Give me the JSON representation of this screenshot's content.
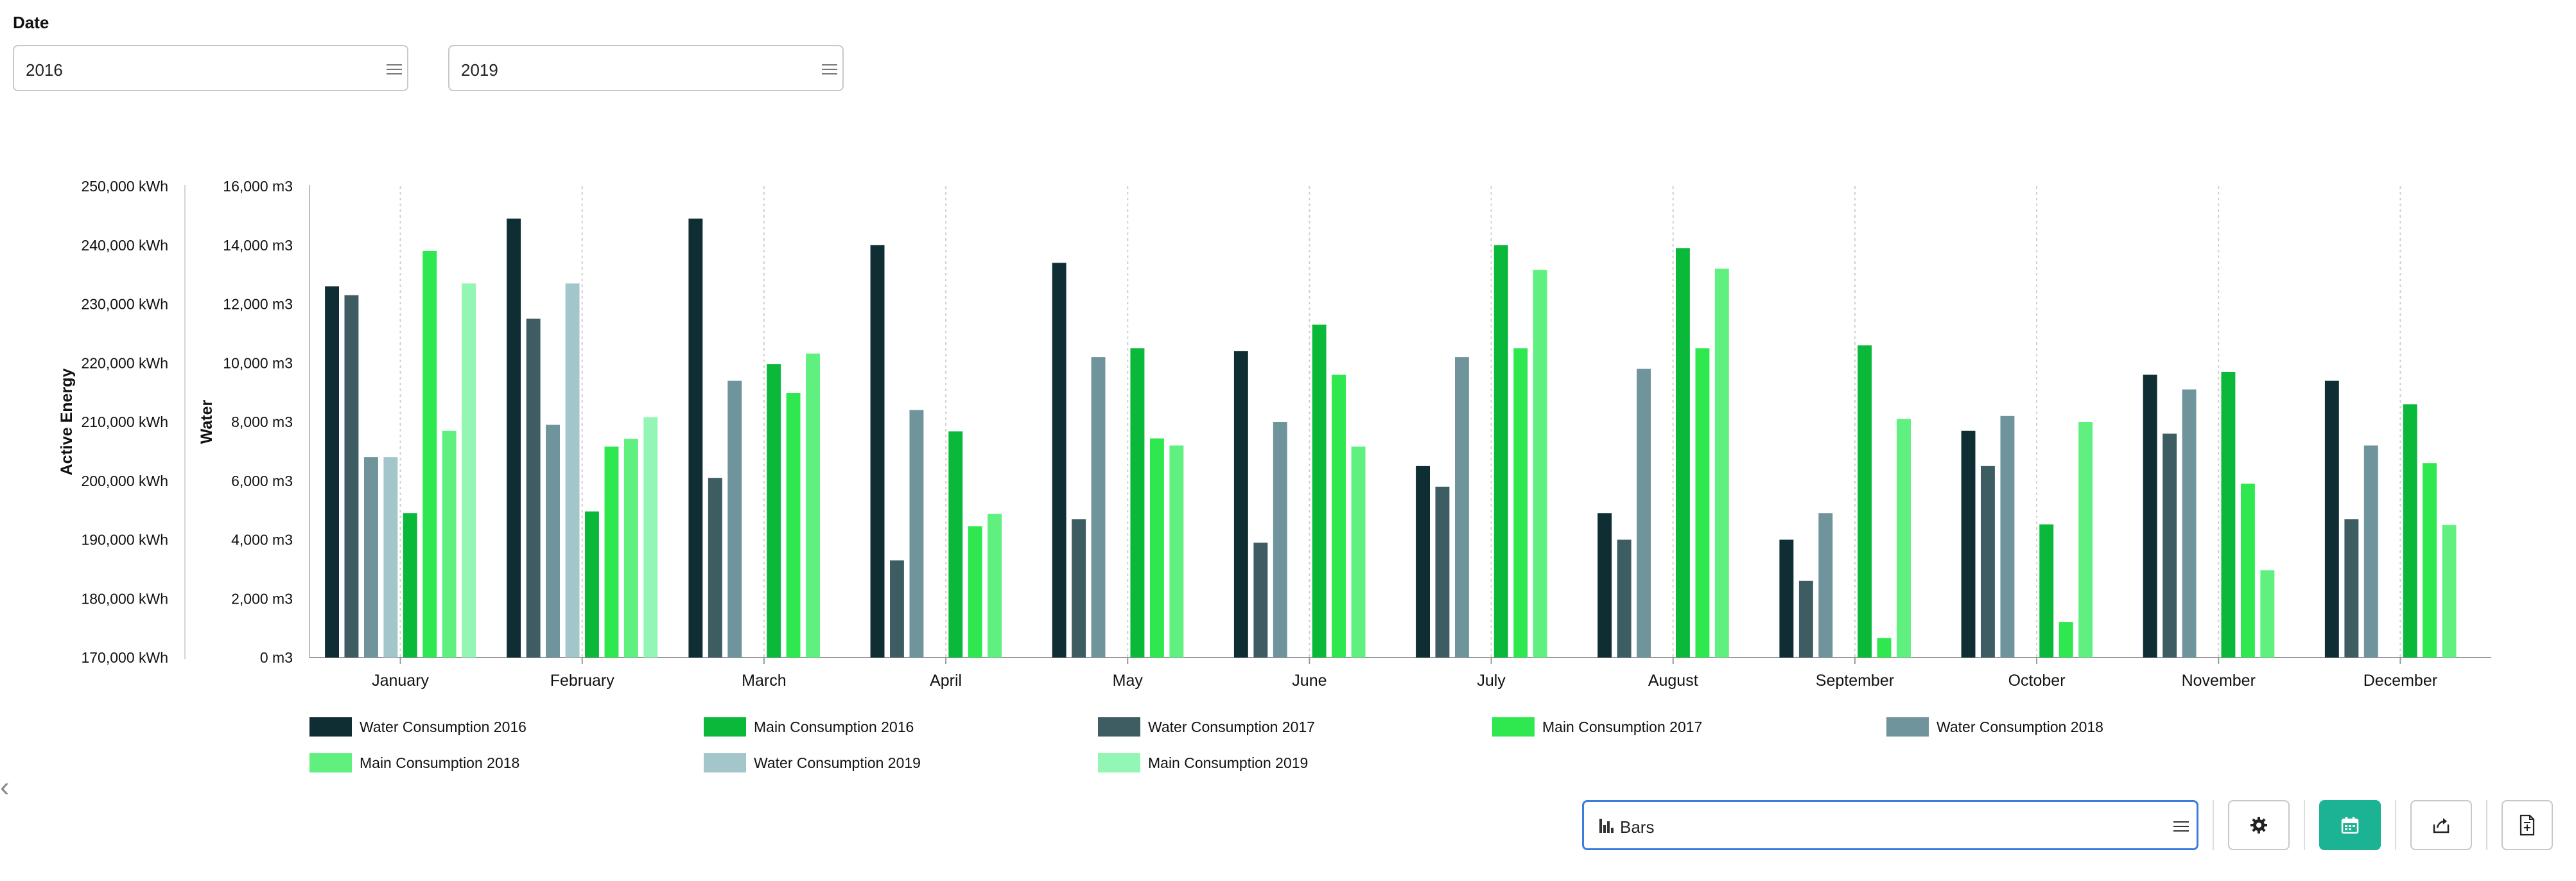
{
  "filters": {
    "date_label": "Date",
    "start_year": "2016",
    "end_year": "2019"
  },
  "chart_data": {
    "type": "bar",
    "categories": [
      "January",
      "February",
      "March",
      "April",
      "May",
      "June",
      "July",
      "August",
      "September",
      "October",
      "November",
      "December"
    ],
    "axes": {
      "energy": {
        "label": "Active Energy",
        "unit": "kWh",
        "range": [
          170000,
          250000
        ],
        "ticks": [
          "250,000 kWh",
          "240,000 kWh",
          "230,000 kWh",
          "220,000 kWh",
          "210,000 kWh",
          "200,000 kWh",
          "190,000 kWh",
          "180,000 kWh",
          "170,000 kWh"
        ]
      },
      "water": {
        "label": "Water",
        "unit": "m3",
        "range": [
          0,
          16000
        ],
        "ticks": [
          "16,000 m3",
          "14,000 m3",
          "12,000 m3",
          "10,000 m3",
          "8,000 m3",
          "6,000 m3",
          "4,000 m3",
          "2,000 m3",
          "0 m3"
        ]
      }
    },
    "series": [
      {
        "name": "Water Consumption 2016",
        "color": "#0f2e33",
        "axis": "water",
        "values": [
          12600,
          14900,
          14900,
          14000,
          13400,
          10400,
          6500,
          4900,
          4000,
          7700,
          9600,
          9400
        ]
      },
      {
        "name": "Water Consumption 2017",
        "color": "#3d5d63",
        "axis": "water",
        "values": [
          12300,
          11500,
          6100,
          3300,
          4700,
          3900,
          5800,
          4000,
          2600,
          6500,
          7600,
          4700
        ]
      },
      {
        "name": "Water Consumption 2018",
        "color": "#6f949b",
        "axis": "water",
        "values": [
          6800,
          7900,
          9400,
          8400,
          10200,
          8000,
          10200,
          9800,
          4900,
          8200,
          9100,
          7200
        ]
      },
      {
        "name": "Water Consumption 2019",
        "color": "#a3c6cb",
        "axis": "water",
        "values": [
          6800,
          12700,
          null,
          null,
          null,
          null,
          null,
          null,
          null,
          null,
          null,
          null
        ]
      },
      {
        "name": "Main Consumption 2016",
        "color": "#0ab83a",
        "axis": "energy",
        "values": [
          194500,
          194800,
          219800,
          208400,
          222500,
          226500,
          240000,
          239500,
          223000,
          192600,
          218500,
          213000
        ]
      },
      {
        "name": "Main Consumption 2017",
        "color": "#2fe84f",
        "axis": "energy",
        "values": [
          239000,
          205800,
          214900,
          192300,
          207200,
          218000,
          222500,
          222500,
          173300,
          176000,
          199500,
          203000
        ]
      },
      {
        "name": "Main Consumption 2018",
        "color": "#5ff07f",
        "axis": "energy",
        "values": [
          208500,
          207100,
          221600,
          194400,
          206000,
          205800,
          235800,
          236000,
          210500,
          210000,
          184800,
          192500
        ]
      },
      {
        "name": "Main Consumption 2019",
        "color": "#93f6b4",
        "axis": "energy",
        "values": [
          233500,
          210800,
          null,
          null,
          null,
          null,
          null,
          null,
          null,
          null,
          null,
          null
        ]
      }
    ],
    "legend_order": [
      "Water Consumption 2016",
      "Main Consumption 2016",
      "Water Consumption 2017",
      "Main Consumption 2017",
      "Water Consumption 2018",
      "Main Consumption 2018",
      "Water Consumption 2019",
      "Main Consumption 2019"
    ],
    "grid": "vertical-dashed",
    "legend_position": "bottom"
  },
  "controls": {
    "chart_type_value": "Bars",
    "icons": {
      "collapse": "chevron-left-icon",
      "chart_type": "bar-chart-icon",
      "menu": "menu-icon",
      "settings": "gear-icon",
      "calendar": "calendar-icon",
      "export": "share-icon",
      "add_to_report": "add-to-report-icon"
    }
  }
}
